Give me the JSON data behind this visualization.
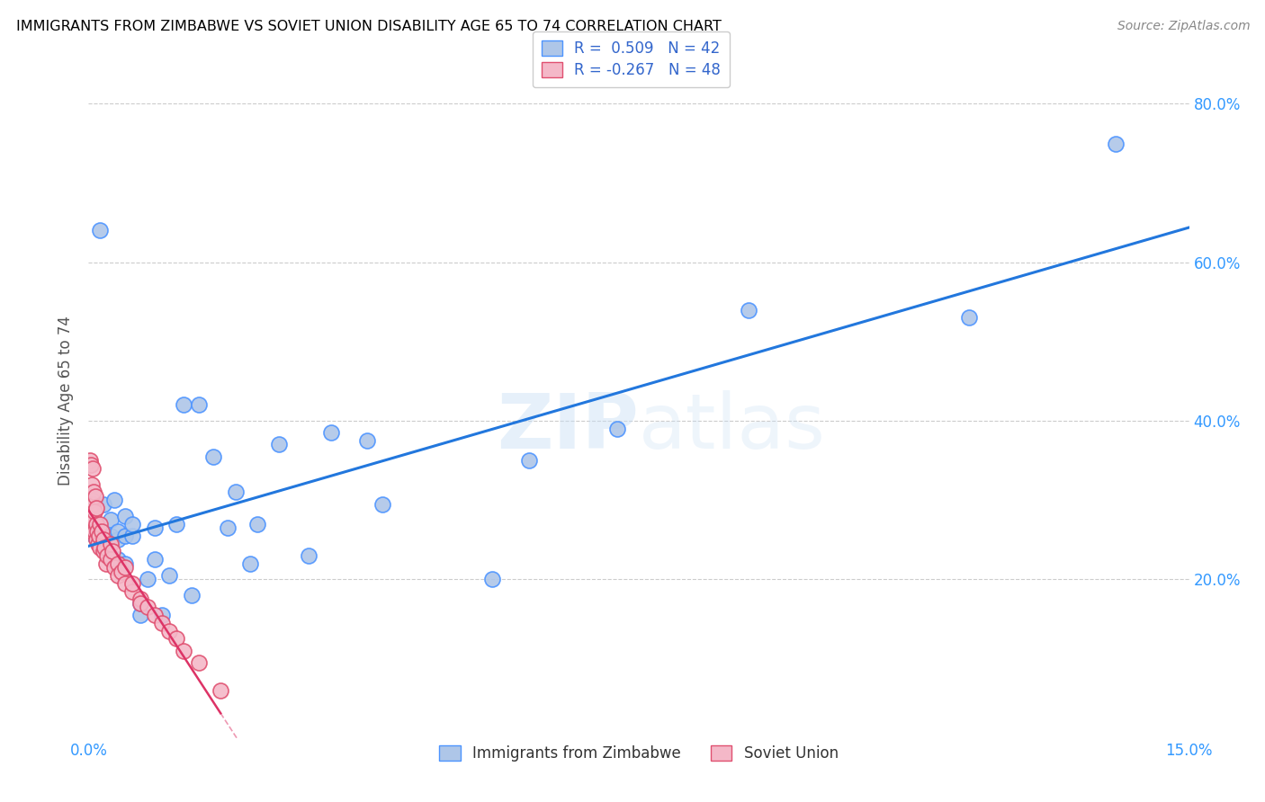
{
  "title": "IMMIGRANTS FROM ZIMBABWE VS SOVIET UNION DISABILITY AGE 65 TO 74 CORRELATION CHART",
  "source": "Source: ZipAtlas.com",
  "xlabel_label": "Immigrants from Zimbabwe",
  "ylabel_label": "Disability Age 65 to 74",
  "xmin": 0.0,
  "xmax": 0.15,
  "ymin": 0.0,
  "ymax": 0.85,
  "yticks": [
    0.2,
    0.4,
    0.6,
    0.8
  ],
  "ytick_labels": [
    "20.0%",
    "40.0%",
    "60.0%",
    "80.0%"
  ],
  "xticks": [
    0.0,
    0.025,
    0.05,
    0.075,
    0.1,
    0.125,
    0.15
  ],
  "xtick_labels": [
    "0.0%",
    "",
    "",
    "",
    "",
    "",
    "15.0%"
  ],
  "zimbabwe_R": 0.509,
  "zimbabwe_N": 42,
  "soviet_R": -0.267,
  "soviet_N": 48,
  "zimbabwe_color": "#aec6e8",
  "soviet_color": "#f4b8c8",
  "zimbabwe_edge_color": "#4d94ff",
  "soviet_edge_color": "#e05070",
  "zimbabwe_line_color": "#2277dd",
  "soviet_line_color": "#dd3366",
  "watermark_color": "#ddeeff",
  "zimbabwe_x": [
    0.0008,
    0.0015,
    0.002,
    0.002,
    0.003,
    0.003,
    0.0035,
    0.004,
    0.004,
    0.004,
    0.005,
    0.005,
    0.005,
    0.006,
    0.006,
    0.007,
    0.007,
    0.008,
    0.009,
    0.009,
    0.01,
    0.011,
    0.012,
    0.013,
    0.014,
    0.015,
    0.017,
    0.019,
    0.02,
    0.022,
    0.023,
    0.026,
    0.03,
    0.033,
    0.038,
    0.04,
    0.055,
    0.06,
    0.072,
    0.09,
    0.12,
    0.14
  ],
  "zimbabwe_y": [
    0.255,
    0.64,
    0.24,
    0.295,
    0.255,
    0.275,
    0.3,
    0.225,
    0.25,
    0.26,
    0.22,
    0.255,
    0.28,
    0.255,
    0.27,
    0.155,
    0.17,
    0.2,
    0.225,
    0.265,
    0.155,
    0.205,
    0.27,
    0.42,
    0.18,
    0.42,
    0.355,
    0.265,
    0.31,
    0.22,
    0.27,
    0.37,
    0.23,
    0.385,
    0.375,
    0.295,
    0.2,
    0.35,
    0.39,
    0.54,
    0.53,
    0.75
  ],
  "soviet_x": [
    0.0002,
    0.0003,
    0.0003,
    0.0004,
    0.0005,
    0.0005,
    0.0006,
    0.0006,
    0.0007,
    0.0007,
    0.0008,
    0.0008,
    0.0009,
    0.001,
    0.001,
    0.0011,
    0.0012,
    0.0013,
    0.0014,
    0.0015,
    0.0016,
    0.0018,
    0.002,
    0.002,
    0.0022,
    0.0024,
    0.0025,
    0.003,
    0.003,
    0.0032,
    0.0035,
    0.004,
    0.004,
    0.0045,
    0.005,
    0.005,
    0.006,
    0.006,
    0.007,
    0.007,
    0.008,
    0.009,
    0.01,
    0.011,
    0.012,
    0.013,
    0.015,
    0.018
  ],
  "soviet_y": [
    0.35,
    0.345,
    0.265,
    0.26,
    0.3,
    0.32,
    0.34,
    0.295,
    0.275,
    0.31,
    0.26,
    0.285,
    0.305,
    0.27,
    0.29,
    0.25,
    0.26,
    0.245,
    0.255,
    0.27,
    0.24,
    0.26,
    0.25,
    0.235,
    0.24,
    0.22,
    0.23,
    0.245,
    0.225,
    0.235,
    0.215,
    0.22,
    0.205,
    0.21,
    0.195,
    0.215,
    0.185,
    0.195,
    0.175,
    0.17,
    0.165,
    0.155,
    0.145,
    0.135,
    0.125,
    0.11,
    0.095,
    0.06
  ]
}
